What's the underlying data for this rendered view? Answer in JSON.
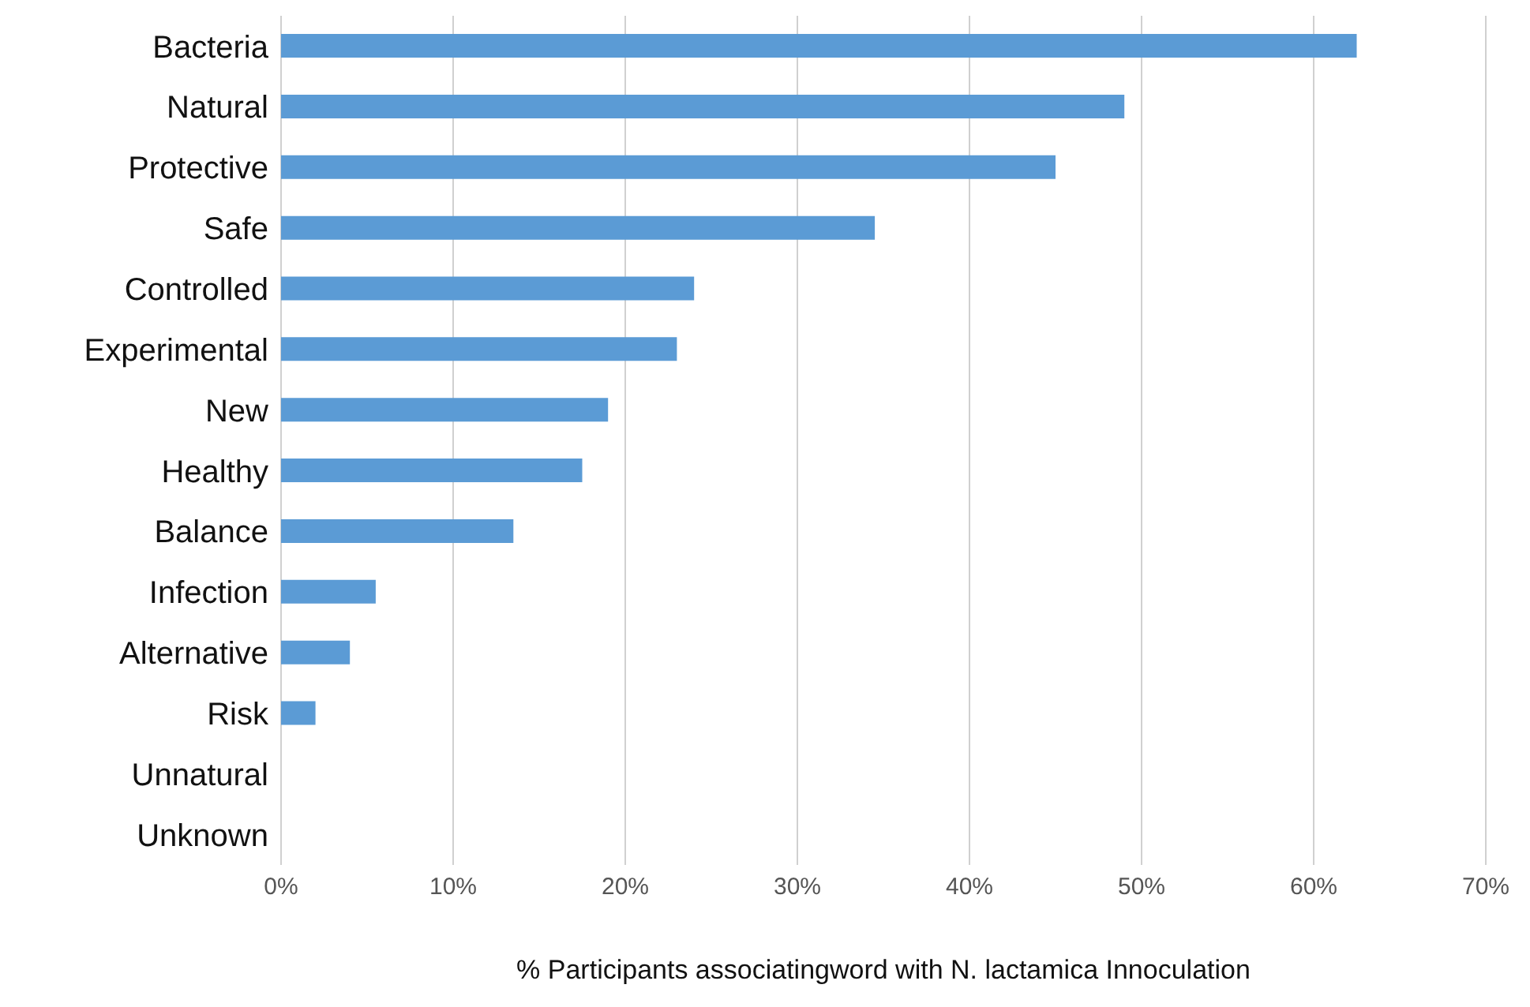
{
  "chart_data": {
    "type": "bar",
    "orientation": "horizontal",
    "categories": [
      "Bacteria",
      "Natural",
      "Protective",
      "Safe",
      "Controlled",
      "Experimental",
      "New",
      "Healthy",
      "Balance",
      "Infection",
      "Alternative",
      "Risk",
      "Unnatural",
      "Unknown"
    ],
    "values": [
      62.5,
      49,
      45,
      34.5,
      24,
      23,
      19,
      17.5,
      13.5,
      5.5,
      4,
      2,
      0,
      0
    ],
    "color": "#5b9bd5",
    "xlim": [
      0,
      70
    ],
    "xticks": [
      {
        "value": 0,
        "label": "0%"
      },
      {
        "value": 10,
        "label": "10%"
      },
      {
        "value": 20,
        "label": "20%"
      },
      {
        "value": 30,
        "label": "30%"
      },
      {
        "value": 40,
        "label": "40%"
      },
      {
        "value": 50,
        "label": "50%"
      },
      {
        "value": 60,
        "label": "60%"
      },
      {
        "value": 70,
        "label": "70%"
      }
    ],
    "xlabel": "% Participants associatingword with N. lactamica Innoculation",
    "grid": "x"
  }
}
